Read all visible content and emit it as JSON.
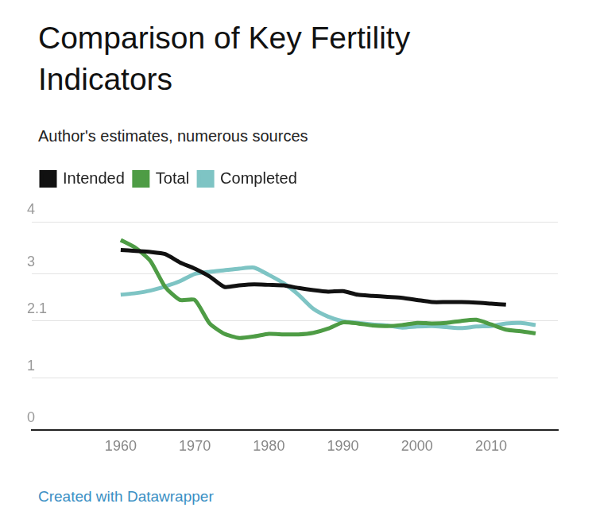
{
  "chart_data": {
    "type": "line",
    "title": "Comparison of Key Fertility Indicators",
    "subtitle": "Author's estimates, numerous sources",
    "footer": "Created with Datawrapper",
    "x": [
      1960,
      1962,
      1964,
      1966,
      1968,
      1970,
      1972,
      1974,
      1976,
      1978,
      1980,
      1982,
      1984,
      1986,
      1988,
      1990,
      1992,
      1994,
      1996,
      1998,
      2000,
      2002,
      2004,
      2006,
      2008,
      2010,
      2012,
      2014,
      2016
    ],
    "series": [
      {
        "name": "Intended",
        "color": "#111111",
        "values": [
          3.46,
          3.44,
          3.42,
          3.38,
          3.22,
          3.1,
          2.95,
          2.75,
          2.78,
          2.8,
          2.79,
          2.78,
          2.73,
          2.69,
          2.66,
          2.67,
          2.6,
          2.58,
          2.56,
          2.54,
          2.5,
          2.46,
          2.46,
          2.46,
          2.45,
          2.43,
          2.41,
          null,
          null
        ]
      },
      {
        "name": "Total",
        "color": "#4e9c45",
        "values": [
          3.65,
          3.5,
          3.25,
          2.75,
          2.5,
          2.5,
          2.05,
          1.85,
          1.77,
          1.8,
          1.85,
          1.84,
          1.84,
          1.87,
          1.95,
          2.07,
          2.05,
          2.01,
          2.0,
          2.02,
          2.06,
          2.05,
          2.06,
          2.1,
          2.12,
          2.03,
          1.93,
          1.9,
          1.86
        ]
      },
      {
        "name": "Completed",
        "color": "#7ec4c4",
        "values": [
          2.6,
          2.63,
          2.68,
          2.76,
          2.86,
          3.0,
          3.04,
          3.07,
          3.1,
          3.12,
          2.98,
          2.82,
          2.6,
          2.33,
          2.18,
          2.09,
          2.06,
          2.03,
          2.01,
          1.97,
          1.99,
          2.0,
          1.98,
          1.96,
          1.99,
          2.0,
          2.05,
          2.06,
          2.02
        ]
      }
    ],
    "xlim": [
      1948,
      2019
    ],
    "xticks": [
      1960,
      1970,
      1980,
      1990,
      2000,
      2010
    ],
    "ylim": [
      0,
      4
    ],
    "yticks": [
      0,
      1,
      2.1,
      3,
      4
    ],
    "grid": true,
    "legend": "top-left"
  }
}
